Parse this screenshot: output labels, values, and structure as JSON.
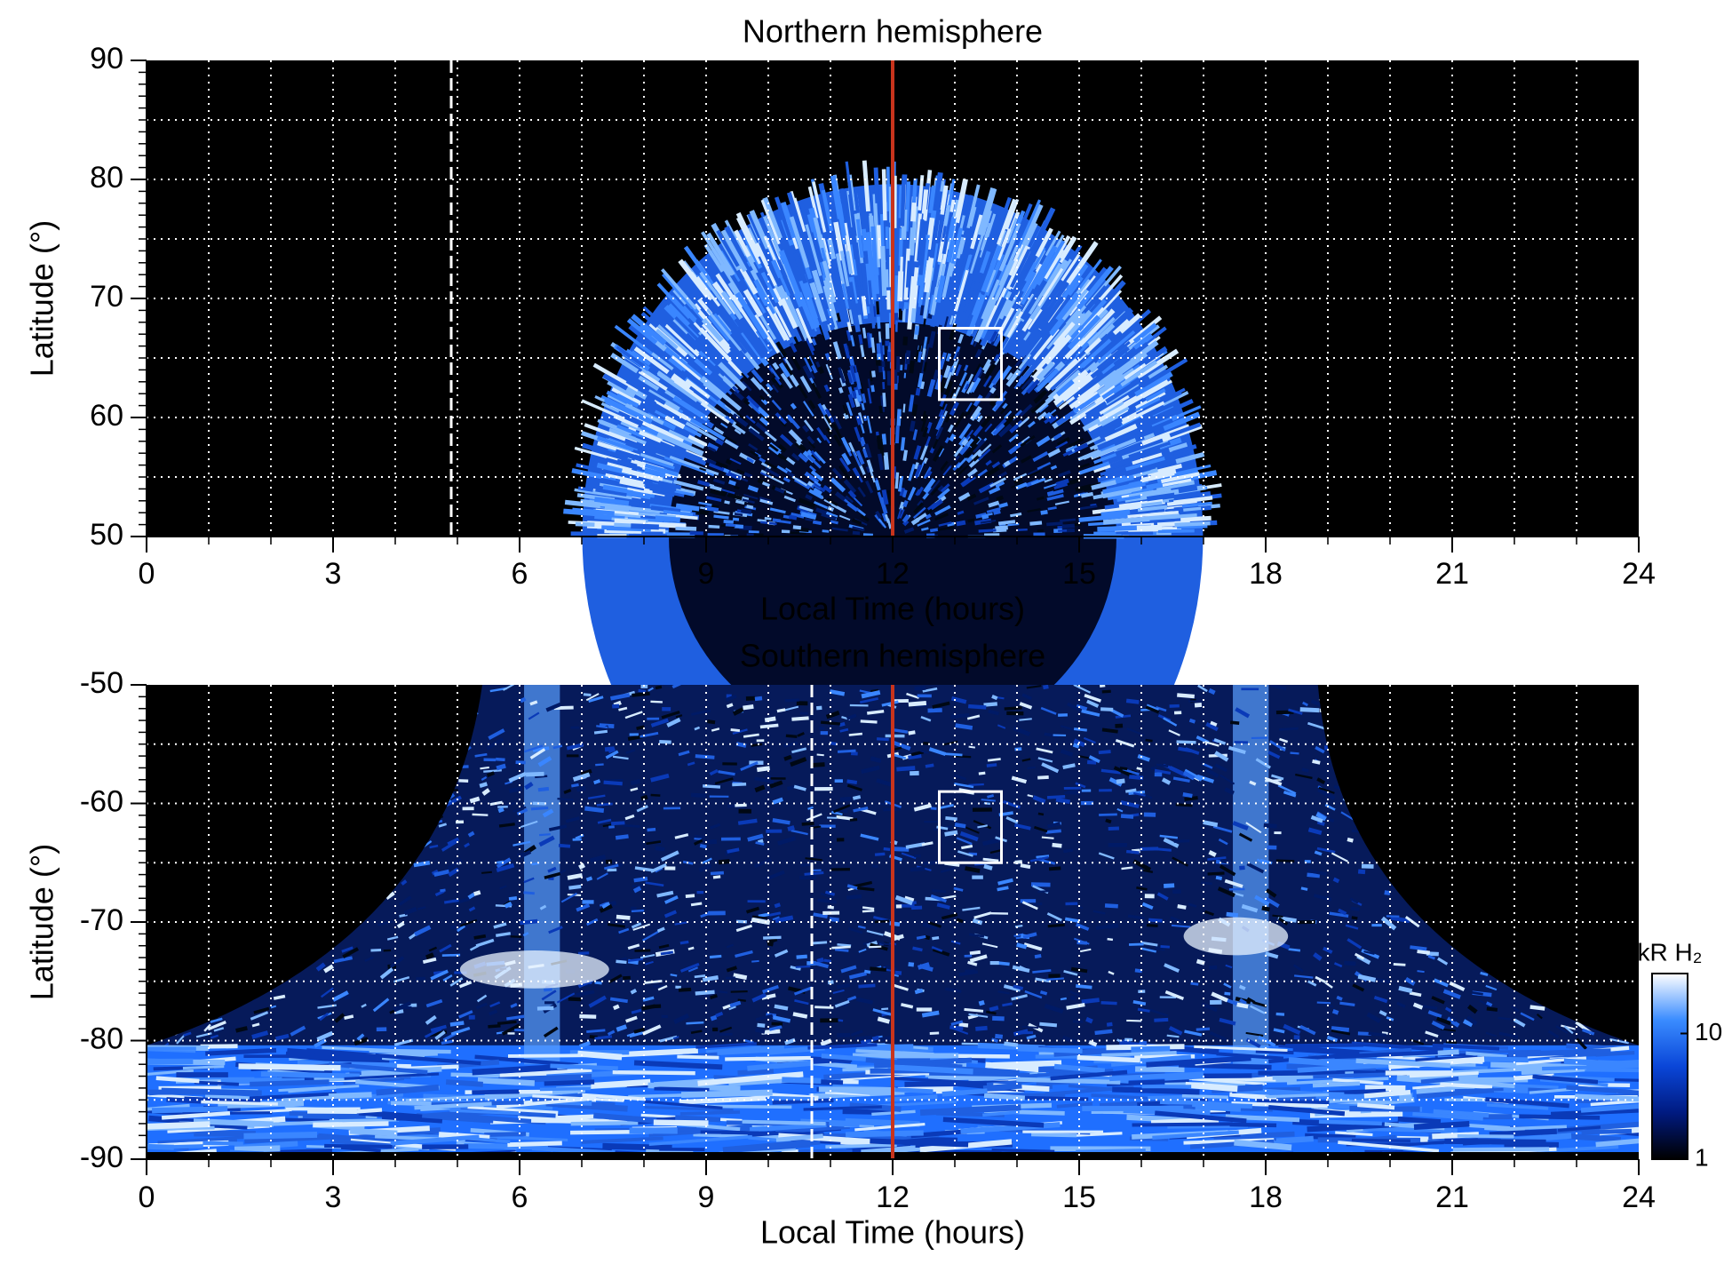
{
  "chart_data": [
    {
      "type": "heatmap",
      "hemisphere": "north",
      "title": "Northern hemisphere",
      "xlabel": "Local Time (hours)",
      "ylabel": "Latitude (°)",
      "xlim": [
        0,
        24
      ],
      "xticks": [
        0,
        3,
        6,
        9,
        12,
        15,
        18,
        21,
        24
      ],
      "ylim": [
        50,
        90
      ],
      "yticks": [
        50,
        60,
        70,
        80,
        90
      ],
      "minor_step": {
        "x": 1,
        "y": 1
      },
      "grid_step": {
        "x": 1,
        "y": 5
      },
      "lines": [
        {
          "x": 12,
          "color": "#c8341c",
          "style": "solid"
        },
        {
          "x": 4.9,
          "color": "#ffffff",
          "style": "dashed"
        }
      ],
      "box": {
        "x": [
          12.75,
          13.75
        ],
        "y": [
          61.5,
          67.5
        ],
        "color": "#ffffff"
      }
    },
    {
      "type": "heatmap",
      "hemisphere": "south",
      "title": "Southern hemisphere",
      "xlabel": "Local Time (hours)",
      "ylabel": "Latitude (°)",
      "xlim": [
        0,
        24
      ],
      "xticks": [
        0,
        3,
        6,
        9,
        12,
        15,
        18,
        21,
        24
      ],
      "ylim": [
        -90,
        -50
      ],
      "yticks": [
        -90,
        -80,
        -70,
        -60,
        -50
      ],
      "minor_step": {
        "x": 1,
        "y": 1
      },
      "grid_step": {
        "x": 1,
        "y": 5
      },
      "lines": [
        {
          "x": 12,
          "color": "#c8341c",
          "style": "solid"
        },
        {
          "x": 10.7,
          "color": "#ffffff",
          "style": "dashed"
        }
      ],
      "box": {
        "x": [
          12.75,
          13.75
        ],
        "y": [
          -65,
          -59
        ],
        "color": "#ffffff"
      },
      "colorbar": {
        "label": "kR H₂",
        "scale": "log",
        "lim": [
          1,
          30
        ],
        "ticks": [
          1,
          10
        ],
        "colors": [
          "#000000",
          "#001a80",
          "#0a46d8",
          "#3a8cff",
          "#ffffff"
        ]
      }
    }
  ]
}
